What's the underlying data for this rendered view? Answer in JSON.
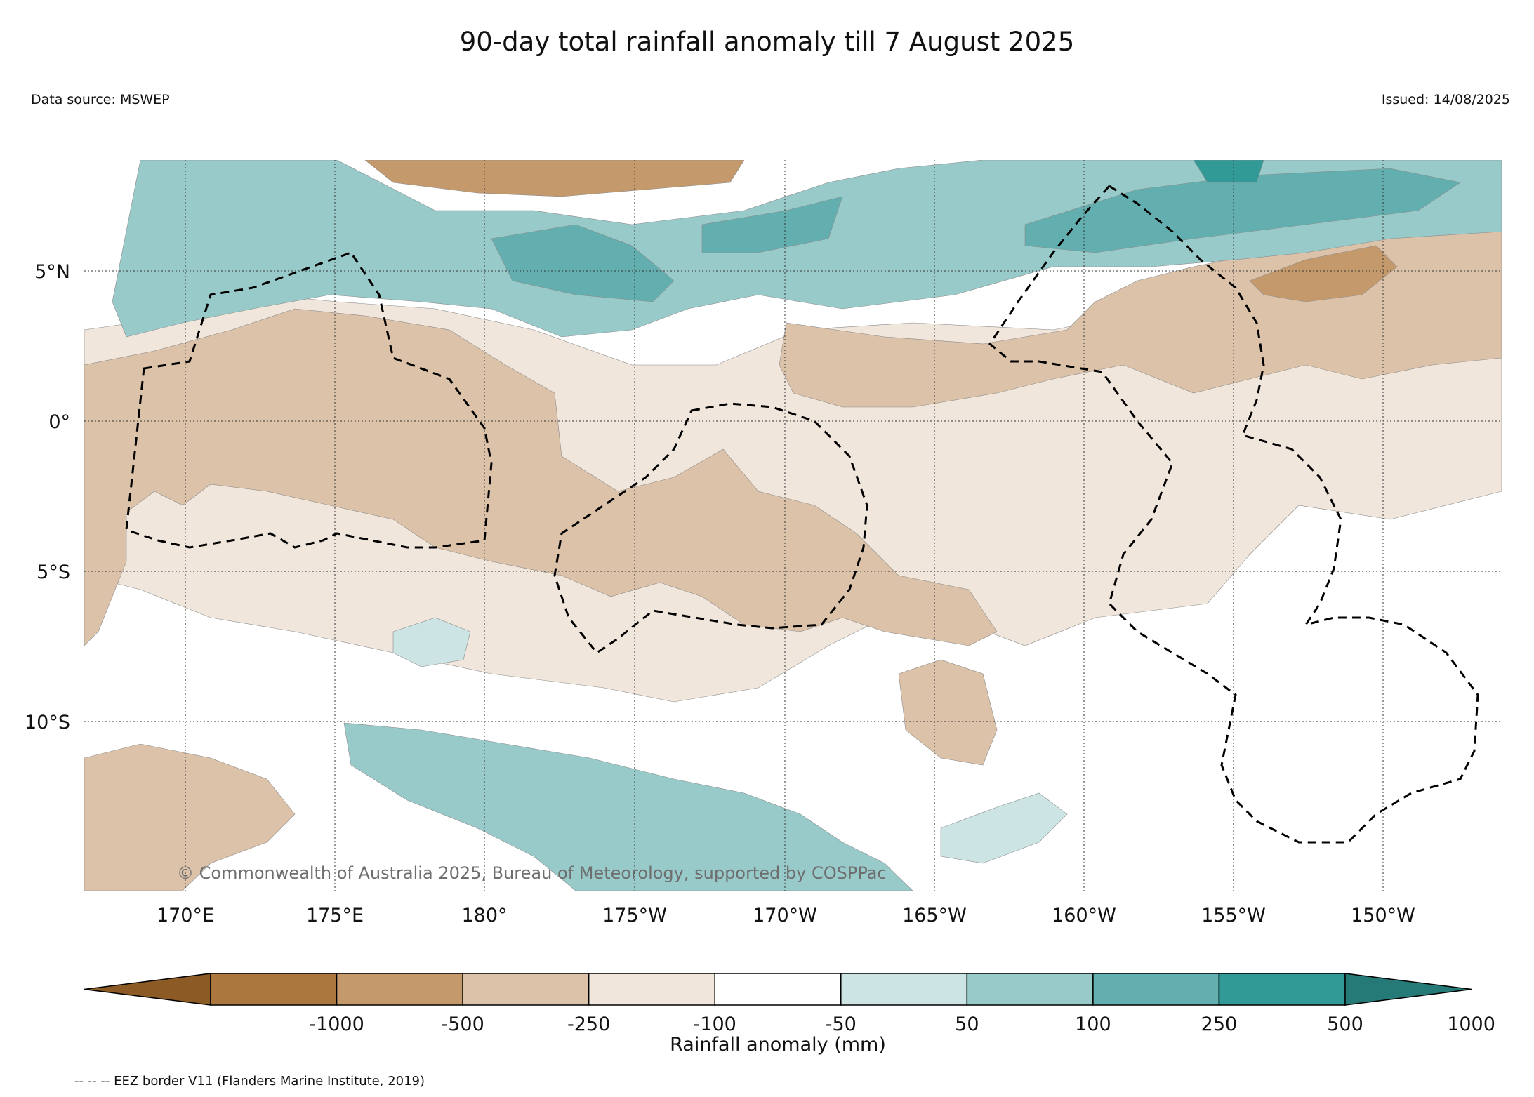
{
  "title": "90-day total rainfall anomaly till 7 August 2025",
  "data_source": "Data source: MSWEP",
  "issued": "Issued: 14/08/2025",
  "credit": "© Commonwealth of Australia 2025, Bureau of Meteorology, supported by COSPPac",
  "lat_labels": [
    "5°N",
    "0°",
    "5°S",
    "10°S"
  ],
  "lon_labels": [
    "170°E",
    "175°E",
    "180°",
    "175°W",
    "170°W",
    "165°W",
    "160°W",
    "155°W",
    "150°W"
  ],
  "colorbar": {
    "label": "Rainfall anomaly (mm)",
    "ticks": [
      "-1000",
      "-500",
      "-250",
      "-100",
      "-50",
      "50",
      "100",
      "250",
      "500",
      "1000"
    ],
    "colors": [
      "#8c5a24",
      "#ab773f",
      "#c49a6d",
      "#dbc2a8",
      "#f1e6dc",
      "#ffffff",
      "#cce4e4",
      "#99caca",
      "#63afaf",
      "#319a96",
      "#257a78"
    ]
  },
  "eez_note": "-- -- -- EEZ border V11 (Flanders Marine Institute, 2019)"
}
